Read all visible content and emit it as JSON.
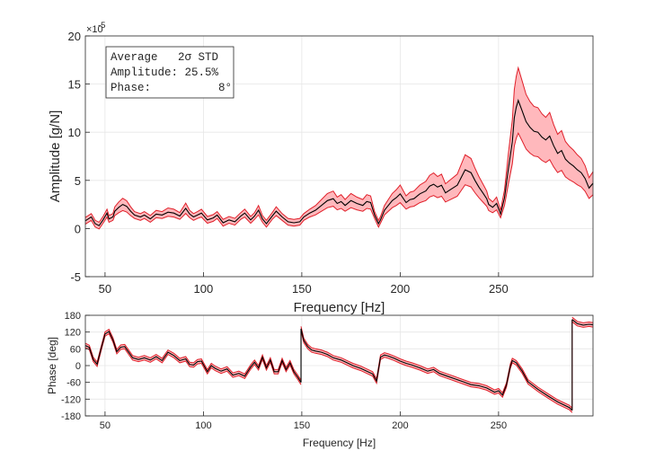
{
  "chart_data": [
    {
      "type": "line",
      "name": "amplitude",
      "xlabel": "Frequency [Hz]",
      "ylabel": "Amplitude [g/N]",
      "y_exponent_label": "×10",
      "y_exponent_power": "-5",
      "xlim": [
        40,
        298
      ],
      "ylim": [
        -5,
        20
      ],
      "xticks": [
        50,
        100,
        150,
        200,
        250
      ],
      "xtick_labels": [
        "50",
        "100",
        "150",
        "200",
        "250"
      ],
      "yticks": [
        -5,
        0,
        5,
        10,
        15,
        20
      ],
      "ytick_labels": [
        "-5",
        "0",
        "5",
        "10",
        "15",
        "20"
      ],
      "grid": true,
      "legend_lines": [
        "Average   2σ STD",
        "Amplitude: 25.5%",
        "Phase:          8°"
      ],
      "legend_location": "top-left",
      "series": [
        {
          "name": "Average",
          "color": "#000000",
          "x": [
            40,
            43,
            45,
            47,
            49,
            51,
            52,
            54,
            55,
            57,
            59,
            61,
            63,
            65,
            68,
            70,
            73,
            76,
            79,
            82,
            85,
            88,
            91,
            93,
            95,
            97,
            99,
            102,
            105,
            107,
            110,
            113,
            116,
            119,
            121,
            124,
            126,
            128,
            130,
            132,
            135,
            137,
            140,
            143,
            146,
            149,
            151,
            154,
            157,
            160,
            163,
            166,
            168,
            170,
            172,
            175,
            178,
            181,
            183,
            185,
            187,
            189,
            190,
            192,
            194,
            196,
            198,
            200,
            203,
            205,
            207,
            210,
            213,
            215,
            217,
            219,
            221,
            223,
            226,
            229,
            231,
            233,
            236,
            238,
            240,
            242,
            244,
            245,
            247,
            249,
            251,
            253,
            255,
            257,
            258,
            259,
            260,
            262,
            264,
            266,
            268,
            270,
            272,
            274,
            276,
            278,
            280,
            282,
            284,
            286,
            288,
            290,
            292,
            294,
            296,
            298
          ],
          "y": [
            0.8,
            1.2,
            0.5,
            0.3,
            0.9,
            1.6,
            1.0,
            1.2,
            1.8,
            2.2,
            2.5,
            2.3,
            1.8,
            1.4,
            1.2,
            1.4,
            1.0,
            1.5,
            1.4,
            1.7,
            1.6,
            1.3,
            2.1,
            1.5,
            1.2,
            1.4,
            1.6,
            0.9,
            1.1,
            1.4,
            0.6,
            0.9,
            0.7,
            1.3,
            1.6,
            0.9,
            1.3,
            1.9,
            1.0,
            0.5,
            1.3,
            1.8,
            1.2,
            0.7,
            0.6,
            0.7,
            1.2,
            1.6,
            1.9,
            2.4,
            2.9,
            3.1,
            2.6,
            2.8,
            2.4,
            2.9,
            2.6,
            2.4,
            2.8,
            2.7,
            1.4,
            0.5,
            0.9,
            1.9,
            2.4,
            2.9,
            3.2,
            3.6,
            2.7,
            3.0,
            3.1,
            3.6,
            3.9,
            4.4,
            4.6,
            4.3,
            4.5,
            3.7,
            4.1,
            4.5,
            5.3,
            6.1,
            5.8,
            5.0,
            4.3,
            3.7,
            3.1,
            2.5,
            2.2,
            2.6,
            1.5,
            3.2,
            6.2,
            9.0,
            11.5,
            12.6,
            13.3,
            12.2,
            11.1,
            10.5,
            10.1,
            10.0,
            9.5,
            9.2,
            9.6,
            8.6,
            7.8,
            8.1,
            7.2,
            6.8,
            6.5,
            6.1,
            5.8,
            5.2,
            4.2,
            4.7
          ]
        },
        {
          "name": "2σ STD band",
          "color": "#e0202a",
          "fill": "#ffb8bc",
          "relative_halfwidth": 0.255
        }
      ]
    },
    {
      "type": "line",
      "name": "phase",
      "xlabel": "Frequency [Hz]",
      "ylabel": "Phase [deg]",
      "xlim": [
        40,
        298
      ],
      "ylim": [
        -180,
        180
      ],
      "xticks": [
        50,
        100,
        150,
        200,
        250
      ],
      "xtick_labels": [
        "50",
        "100",
        "150",
        "200",
        "250"
      ],
      "yticks": [
        -180,
        -120,
        -60,
        0,
        60,
        120,
        180
      ],
      "ytick_labels": [
        "-180",
        "-120",
        "-60",
        "0",
        "60",
        "120",
        "180"
      ],
      "grid": true,
      "series": [
        {
          "name": "Average",
          "color": "#000000",
          "segments": [
            {
              "x": [
                40,
                42,
                44,
                46,
                48,
                50,
                52,
                54,
                56,
                58,
                60,
                62,
                64,
                67,
                70,
                73,
                76,
                79,
                82,
                85,
                88,
                91,
                93,
                95,
                97,
                99,
                102,
                104,
                106,
                109,
                112,
                115,
                118,
                121,
                124,
                126,
                128,
                130,
                132,
                134,
                136,
                138,
                140,
                142,
                144,
                146,
                148,
                149.6
              ],
              "y": [
                72,
                65,
                22,
                5,
                60,
                113,
                122,
                92,
                50,
                66,
                68,
                48,
                28,
                22,
                28,
                20,
                32,
                18,
                48,
                36,
                18,
                24,
                4,
                2,
                14,
                16,
                -22,
                0,
                -10,
                -20,
                -12,
                -34,
                -28,
                -38,
                -5,
                12,
                -8,
                30,
                -8,
                20,
                -22,
                -22,
                18,
                -14,
                10,
                -22,
                -42,
                -60
              ]
            },
            {
              "x": [
                149.6,
                151,
                153,
                155,
                157,
                160,
                163,
                166,
                170,
                173,
                176,
                180,
                183,
                186,
                188,
                190,
                192,
                194,
                197,
                200,
                203,
                206,
                210,
                214,
                217,
                220,
                224,
                228,
                232,
                236,
                240,
                244,
                248,
                250,
                252,
                254,
                256,
                257,
                259,
                262,
                265,
                270,
                275,
                280,
                286,
                287.4
              ],
              "y": [
                132,
                90,
                68,
                56,
                52,
                48,
                40,
                28,
                20,
                10,
                0,
                -10,
                -20,
                -30,
                -55,
                30,
                38,
                34,
                26,
                16,
                8,
                2,
                -8,
                -20,
                -14,
                -28,
                -38,
                -48,
                -58,
                -68,
                -72,
                -80,
                -95,
                -90,
                -105,
                -70,
                -2,
                18,
                10,
                -20,
                -58,
                -85,
                -108,
                -130,
                -150,
                -160
              ]
            },
            {
              "x": [
                287.4,
                290,
                293,
                296,
                298
              ],
              "y": [
                165,
                150,
                145,
                148,
                146
              ]
            }
          ]
        },
        {
          "name": "2σ STD band",
          "color": "#e0202a",
          "fill": "#ffb8bc",
          "halfwidth_deg": 8
        }
      ]
    }
  ]
}
